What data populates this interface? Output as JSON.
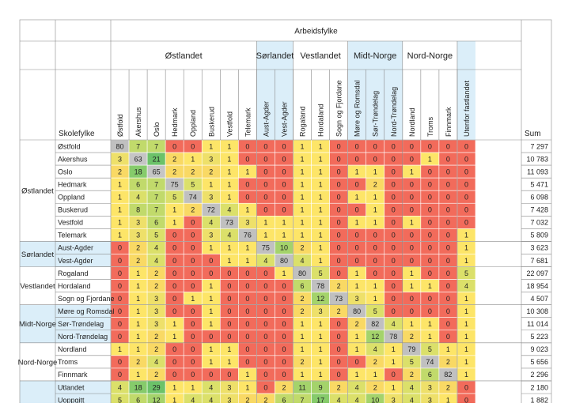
{
  "chart_data": {
    "type": "heatmap",
    "title": "Arbeidsfylke",
    "row_axis_label": "Skolefylke",
    "sum_label": "Sum",
    "column_groups": [
      {
        "name": "Østlandet",
        "count": 8,
        "color": "#ffffff"
      },
      {
        "name": "Sørlandet",
        "count": 2,
        "color": "#dbeef9"
      },
      {
        "name": "Vestlandet",
        "count": 3,
        "color": "#ffffff"
      },
      {
        "name": "Midt-Norge",
        "count": 3,
        "color": "#dbeef9"
      },
      {
        "name": "Nord-Norge",
        "count": 3,
        "color": "#ffffff"
      },
      {
        "name": "",
        "count": 1,
        "color": "#dbeef9"
      }
    ],
    "columns": [
      "Østfold",
      "Akershus",
      "Oslo",
      "Hedmark",
      "Oppland",
      "Buskerud",
      "Vestfold",
      "Telemark",
      "Aust-Agder",
      "Vest-Agder",
      "Rogaland",
      "Hordaland",
      "Sogn og Fjordane",
      "Møre og Romsdal",
      "Sør-Trøndelag",
      "Nord-Trøndelag",
      "Nordland",
      "Troms",
      "Finnmark",
      "Utenfor fastlandet"
    ],
    "row_groups": [
      {
        "name": "Østlandet",
        "count": 8,
        "color": "#ffffff"
      },
      {
        "name": "Sørlandet",
        "count": 2,
        "color": "#dbeef9"
      },
      {
        "name": "Vestlandet",
        "count": 3,
        "color": "#ffffff"
      },
      {
        "name": "Midt-Norge",
        "count": 3,
        "color": "#dbeef9"
      },
      {
        "name": "Nord-Norge",
        "count": 3,
        "color": "#ffffff"
      },
      {
        "name": "",
        "count": 2,
        "color": "#dbeef9"
      }
    ],
    "rows": [
      {
        "name": "Østfold",
        "values": [
          80,
          7,
          7,
          0,
          0,
          1,
          1,
          0,
          0,
          0,
          1,
          1,
          0,
          0,
          0,
          0,
          0,
          0,
          0,
          0
        ],
        "sum": "7 297"
      },
      {
        "name": "Akershus",
        "values": [
          3,
          63,
          21,
          2,
          1,
          3,
          1,
          0,
          0,
          0,
          1,
          1,
          0,
          0,
          0,
          0,
          0,
          1,
          0,
          0
        ],
        "sum": "10 783"
      },
      {
        "name": "Oslo",
        "values": [
          2,
          18,
          65,
          2,
          2,
          2,
          1,
          1,
          0,
          0,
          1,
          1,
          0,
          1,
          1,
          0,
          1,
          0,
          0,
          0
        ],
        "sum": "11 093"
      },
      {
        "name": "Hedmark",
        "values": [
          1,
          6,
          7,
          75,
          5,
          1,
          1,
          0,
          0,
          0,
          1,
          1,
          0,
          0,
          2,
          0,
          0,
          0,
          0,
          0
        ],
        "sum": "5 471"
      },
      {
        "name": "Oppland",
        "values": [
          1,
          4,
          7,
          5,
          74,
          3,
          1,
          0,
          0,
          0,
          1,
          1,
          0,
          1,
          1,
          0,
          0,
          0,
          0,
          0
        ],
        "sum": "6 098"
      },
      {
        "name": "Buskerud",
        "values": [
          1,
          8,
          7,
          1,
          2,
          72,
          4,
          1,
          0,
          0,
          1,
          1,
          0,
          0,
          1,
          0,
          0,
          0,
          0,
          0
        ],
        "sum": "7 428"
      },
      {
        "name": "Vestfold",
        "values": [
          1,
          3,
          6,
          1,
          0,
          4,
          73,
          3,
          1,
          1,
          1,
          1,
          0,
          1,
          1,
          0,
          1,
          0,
          0,
          0
        ],
        "sum": "7 032"
      },
      {
        "name": "Telemark",
        "values": [
          1,
          3,
          5,
          0,
          0,
          3,
          4,
          76,
          1,
          1,
          1,
          1,
          0,
          0,
          0,
          0,
          0,
          0,
          0,
          1
        ],
        "sum": "5 809"
      },
      {
        "name": "Aust-Agder",
        "values": [
          0,
          2,
          4,
          0,
          0,
          1,
          1,
          1,
          75,
          10,
          2,
          1,
          0,
          0,
          0,
          0,
          0,
          0,
          0,
          1
        ],
        "sum": "3 623"
      },
      {
        "name": "Vest-Agder",
        "values": [
          0,
          2,
          4,
          0,
          0,
          0,
          1,
          1,
          4,
          80,
          4,
          1,
          0,
          0,
          0,
          0,
          0,
          0,
          0,
          1
        ],
        "sum": "7 681"
      },
      {
        "name": "Rogaland",
        "values": [
          0,
          1,
          2,
          0,
          0,
          0,
          0,
          0,
          0,
          1,
          80,
          5,
          0,
          1,
          0,
          0,
          1,
          0,
          0,
          5
        ],
        "sum": "22 097"
      },
      {
        "name": "Hordaland",
        "values": [
          0,
          1,
          2,
          0,
          0,
          1,
          0,
          0,
          0,
          0,
          6,
          78,
          2,
          1,
          1,
          0,
          1,
          1,
          0,
          4
        ],
        "sum": "18 954"
      },
      {
        "name": "Sogn og Fjordane",
        "values": [
          0,
          1,
          3,
          0,
          1,
          1,
          0,
          0,
          0,
          0,
          2,
          12,
          73,
          3,
          1,
          0,
          0,
          0,
          0,
          1
        ],
        "sum": "4 507"
      },
      {
        "name": "Møre og Romsdal",
        "values": [
          0,
          1,
          3,
          0,
          0,
          1,
          0,
          0,
          0,
          0,
          2,
          3,
          2,
          80,
          5,
          0,
          0,
          0,
          0,
          1
        ],
        "sum": "10 308"
      },
      {
        "name": "Sør-Trøndelag",
        "values": [
          0,
          1,
          3,
          1,
          0,
          1,
          0,
          0,
          0,
          0,
          1,
          1,
          0,
          2,
          82,
          4,
          1,
          1,
          0,
          1
        ],
        "sum": "11 014"
      },
      {
        "name": "Nord-Trøndelag",
        "values": [
          0,
          1,
          2,
          1,
          0,
          0,
          0,
          0,
          0,
          0,
          1,
          1,
          0,
          1,
          12,
          78,
          2,
          1,
          0,
          1
        ],
        "sum": "5 223"
      },
      {
        "name": "Nordland",
        "values": [
          1,
          1,
          2,
          0,
          0,
          1,
          1,
          0,
          0,
          0,
          1,
          1,
          0,
          1,
          4,
          1,
          79,
          5,
          1,
          1
        ],
        "sum": "9 023"
      },
      {
        "name": "Troms",
        "values": [
          0,
          2,
          4,
          0,
          0,
          1,
          1,
          0,
          0,
          0,
          2,
          1,
          0,
          0,
          2,
          1,
          5,
          74,
          2,
          1
        ],
        "sum": "5 656"
      },
      {
        "name": "Finnmark",
        "values": [
          0,
          1,
          2,
          0,
          0,
          0,
          0,
          1,
          0,
          0,
          1,
          1,
          0,
          1,
          1,
          0,
          2,
          6,
          82,
          1
        ],
        "sum": "2 296"
      },
      {
        "name": "Utlandet",
        "values": [
          4,
          18,
          29,
          1,
          1,
          4,
          3,
          1,
          0,
          2,
          11,
          9,
          2,
          4,
          2,
          1,
          4,
          3,
          2,
          0
        ],
        "sum": "2 180"
      },
      {
        "name": "Uoppgitt",
        "values": [
          5,
          6,
          12,
          1,
          4,
          4,
          3,
          2,
          2,
          6,
          7,
          17,
          4,
          4,
          10,
          3,
          4,
          3,
          1,
          0
        ],
        "sum": "1 882"
      }
    ]
  }
}
